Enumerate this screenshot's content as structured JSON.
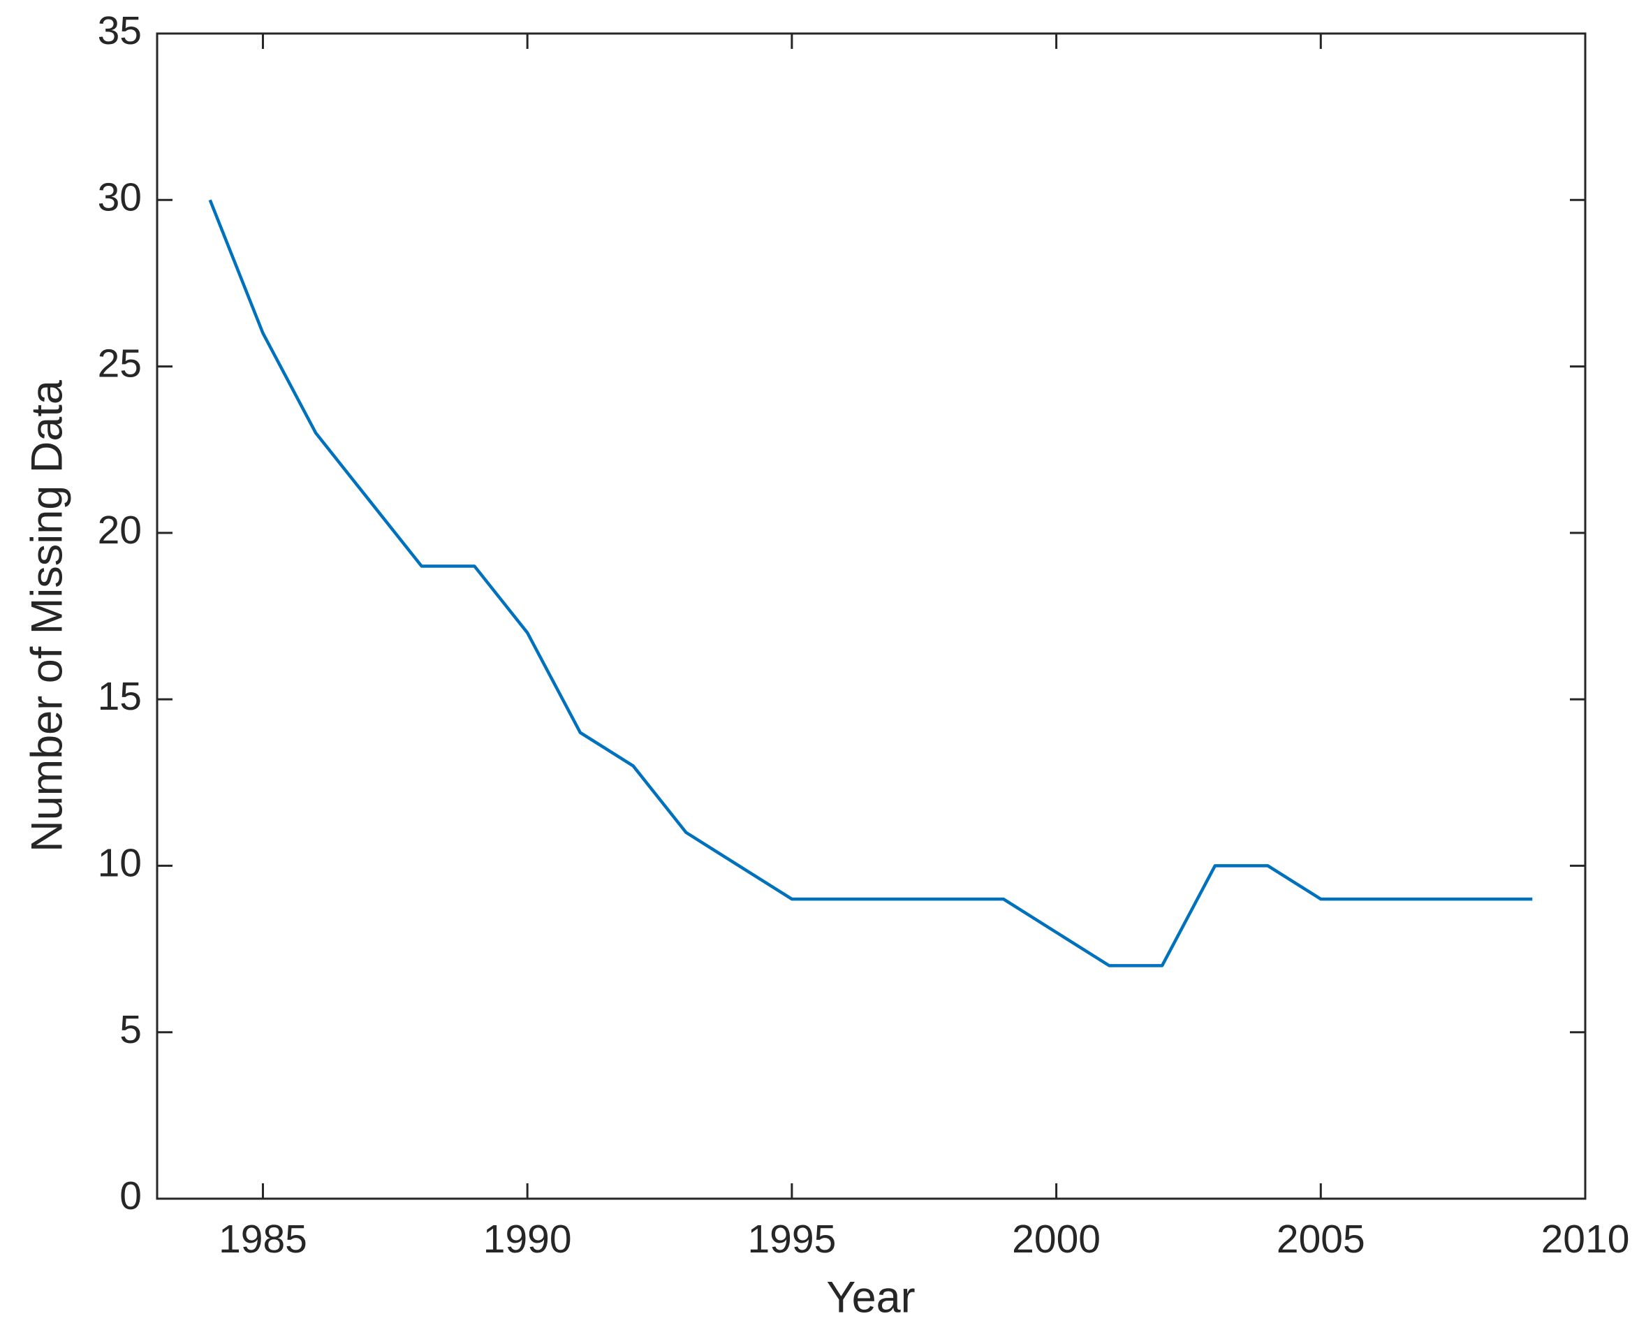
{
  "chart_data": {
    "type": "line",
    "x_label": "Year",
    "y_label": "Number of Missing Data",
    "x": [
      1984,
      1985,
      1986,
      1987,
      1988,
      1989,
      1990,
      1991,
      1992,
      1993,
      1994,
      1995,
      1996,
      1997,
      1998,
      1999,
      2000,
      2001,
      2002,
      2003,
      2004,
      2005,
      2006,
      2007,
      2008,
      2009
    ],
    "series": [
      {
        "color": "#0072bd",
        "values": [
          30,
          26,
          23,
          21,
          19,
          19,
          17,
          14,
          13,
          11,
          10,
          9,
          9,
          9,
          9,
          9,
          8,
          7,
          7,
          10,
          10,
          9,
          9,
          9,
          9,
          9
        ]
      }
    ],
    "xlim": [
      1983,
      2010
    ],
    "xticks": [
      1985,
      1990,
      1995,
      2000,
      2005,
      2010
    ],
    "ylim": [
      0,
      35
    ],
    "yticks": [
      0,
      5,
      10,
      15,
      20,
      25,
      30,
      35
    ],
    "grid": false
  }
}
